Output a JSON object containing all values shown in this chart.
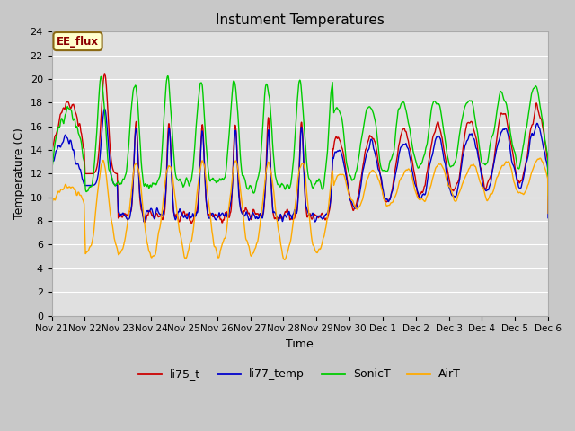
{
  "title": "Instument Temperatures",
  "ylabel": "Temperature (C)",
  "xlabel": "Time",
  "annotation": "EE_flux",
  "ylim": [
    0,
    24
  ],
  "xlim": [
    0,
    15
  ],
  "xtick_labels": [
    "Nov 21",
    "Nov 22",
    "Nov 23",
    "Nov 24",
    "Nov 25",
    "Nov 26",
    "Nov 27",
    "Nov 28",
    "Nov 29",
    "Nov 30",
    "Dec 1",
    "Dec 2",
    "Dec 3",
    "Dec 4",
    "Dec 5",
    "Dec 6"
  ],
  "colors": {
    "li75_t": "#cc0000",
    "li77_temp": "#0000cc",
    "SonicT": "#00cc00",
    "AirT": "#ffaa00"
  }
}
